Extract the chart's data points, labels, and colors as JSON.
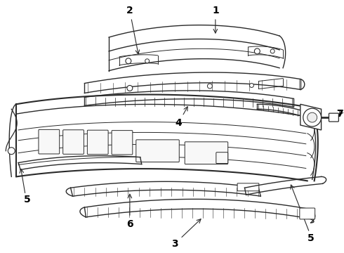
{
  "background_color": "#ffffff",
  "line_color": "#2a2a2a",
  "label_color": "#000000",
  "figsize": [
    4.9,
    3.6
  ],
  "dpi": 100,
  "parts": {
    "part1_label": "1",
    "part2_label": "2",
    "part3_label": "3",
    "part4_label": "4",
    "part5_label": "5",
    "part6_label": "6",
    "part7_label": "7"
  }
}
